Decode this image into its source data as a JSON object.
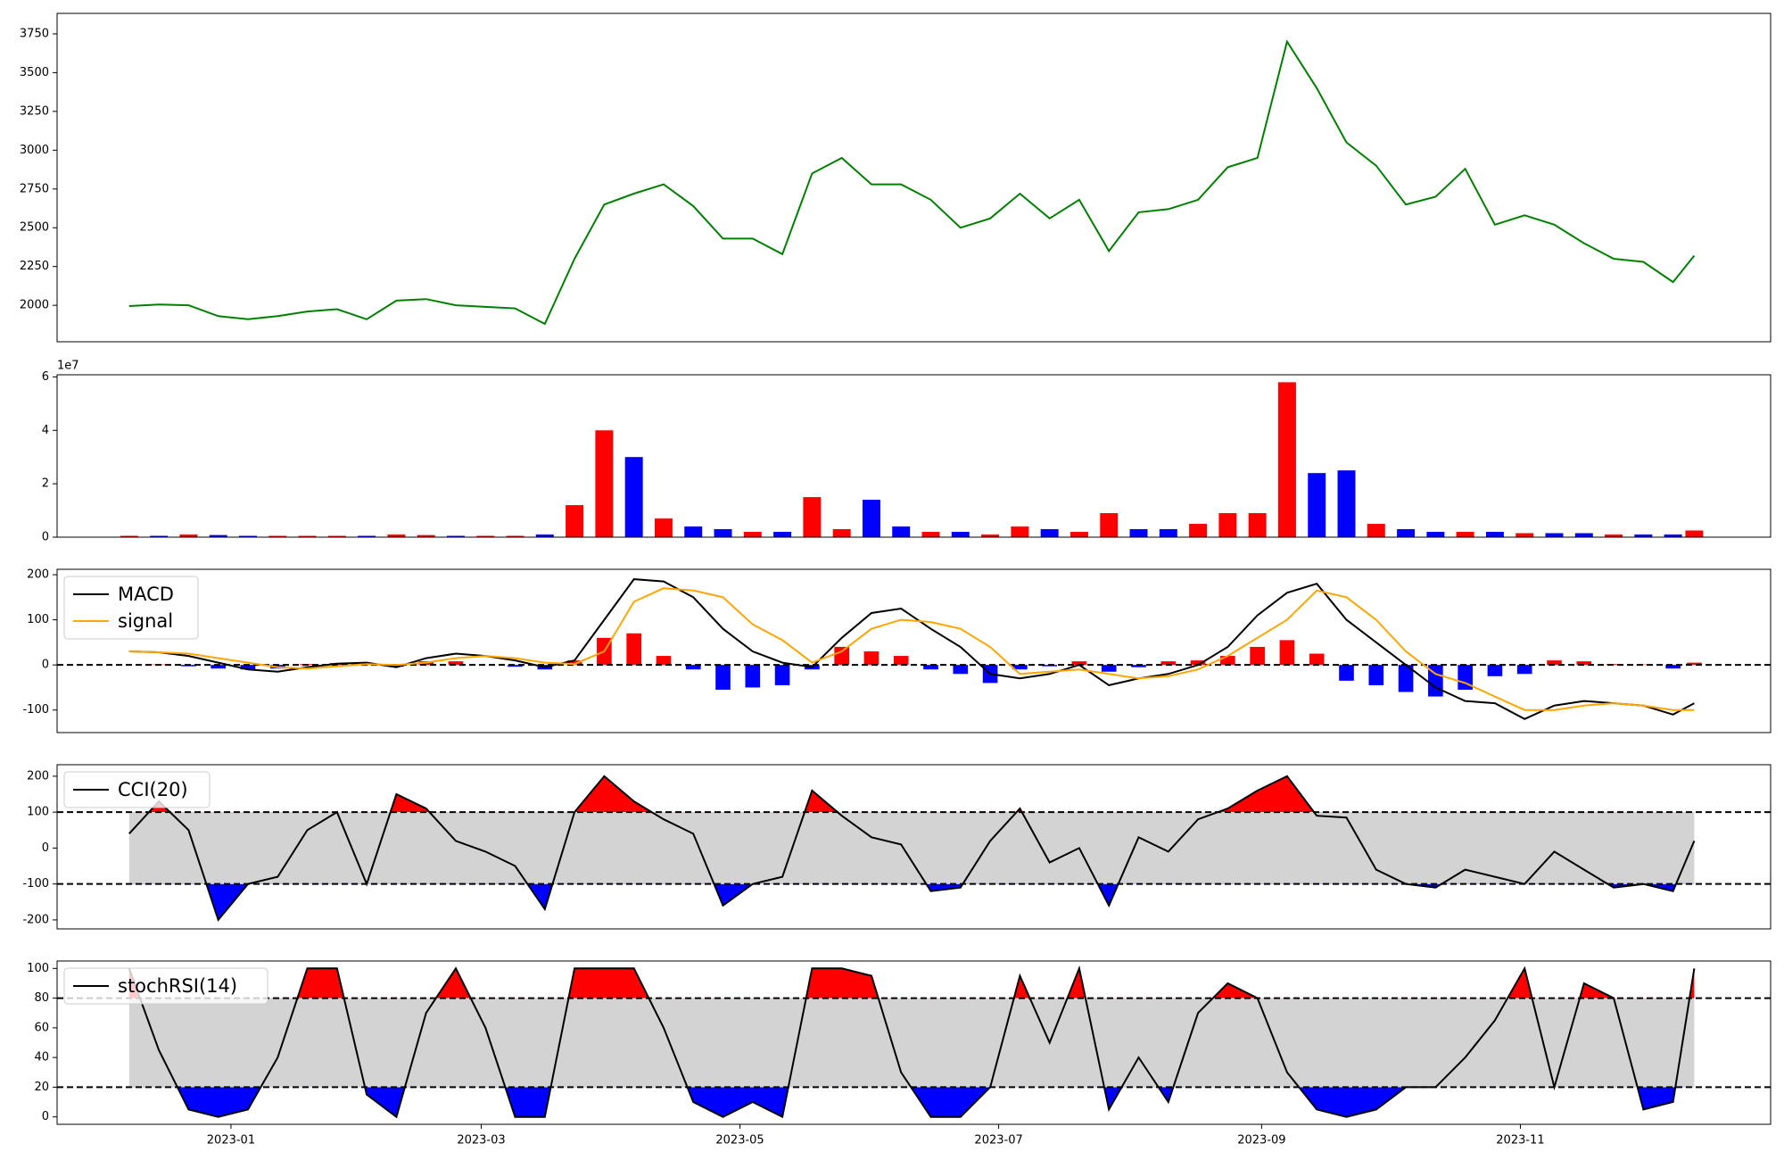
{
  "chart_data": [
    {
      "type": "line",
      "color": "green",
      "x": [
        "2022-12-08",
        "2022-12-15",
        "2022-12-22",
        "2022-12-29",
        "2023-01-05",
        "2023-01-12",
        "2023-01-19",
        "2023-01-26",
        "2023-02-02",
        "2023-02-09",
        "2023-02-16",
        "2023-02-23",
        "2023-03-02",
        "2023-03-09",
        "2023-03-16",
        "2023-03-23",
        "2023-03-30",
        "2023-04-06",
        "2023-04-13",
        "2023-04-20",
        "2023-04-27",
        "2023-05-04",
        "2023-05-11",
        "2023-05-18",
        "2023-05-25",
        "2023-06-01",
        "2023-06-08",
        "2023-06-15",
        "2023-06-22",
        "2023-06-29",
        "2023-07-06",
        "2023-07-13",
        "2023-07-20",
        "2023-07-27",
        "2023-08-03",
        "2023-08-10",
        "2023-08-17",
        "2023-08-24",
        "2023-08-31",
        "2023-09-07",
        "2023-09-14",
        "2023-09-21",
        "2023-09-28",
        "2023-10-05",
        "2023-10-12",
        "2023-10-19",
        "2023-10-26",
        "2023-11-02",
        "2023-11-09",
        "2023-11-16",
        "2023-11-23",
        "2023-11-30",
        "2023-12-07",
        "2023-12-12"
      ],
      "values": [
        1995,
        2005,
        2000,
        1930,
        1910,
        1930,
        1960,
        1975,
        1910,
        2030,
        2040,
        2000,
        1990,
        1980,
        1880,
        2300,
        2650,
        2720,
        2780,
        2640,
        2430,
        2430,
        2330,
        2850,
        2950,
        2780,
        2780,
        2680,
        2500,
        2560,
        2720,
        2560,
        2680,
        2350,
        2600,
        2620,
        2680,
        2890,
        2950,
        3700,
        3400,
        3050,
        2900,
        2650,
        2700,
        2880,
        2520,
        2580,
        2520,
        2400,
        2300,
        2280,
        2150,
        2320
      ],
      "xlim": [
        "2022-11-21",
        "2023-12-30"
      ],
      "ylim": [
        1765,
        3882
      ],
      "yticks": [
        2000,
        2250,
        2500,
        2750,
        3000,
        3250,
        3500,
        3750
      ]
    },
    {
      "type": "bar",
      "offset_text": "1e7",
      "x": [
        "2022-12-08",
        "2022-12-15",
        "2022-12-22",
        "2022-12-29",
        "2023-01-05",
        "2023-01-12",
        "2023-01-19",
        "2023-01-26",
        "2023-02-02",
        "2023-02-09",
        "2023-02-16",
        "2023-02-23",
        "2023-03-02",
        "2023-03-09",
        "2023-03-16",
        "2023-03-23",
        "2023-03-30",
        "2023-04-06",
        "2023-04-13",
        "2023-04-20",
        "2023-04-27",
        "2023-05-04",
        "2023-05-11",
        "2023-05-18",
        "2023-05-25",
        "2023-06-01",
        "2023-06-08",
        "2023-06-15",
        "2023-06-22",
        "2023-06-29",
        "2023-07-06",
        "2023-07-13",
        "2023-07-20",
        "2023-07-27",
        "2023-08-03",
        "2023-08-10",
        "2023-08-17",
        "2023-08-24",
        "2023-08-31",
        "2023-09-07",
        "2023-09-14",
        "2023-09-21",
        "2023-09-28",
        "2023-10-05",
        "2023-10-12",
        "2023-10-19",
        "2023-10-26",
        "2023-11-02",
        "2023-11-09",
        "2023-11-16",
        "2023-11-23",
        "2023-11-30",
        "2023-12-07",
        "2023-12-12"
      ],
      "values": [
        0.05,
        0.05,
        0.1,
        0.08,
        0.05,
        0.05,
        0.05,
        0.05,
        0.05,
        0.1,
        0.08,
        0.05,
        0.05,
        0.05,
        0.1,
        1.2,
        4.0,
        3.0,
        0.7,
        0.4,
        0.3,
        0.2,
        0.2,
        1.5,
        0.3,
        1.4,
        0.4,
        0.2,
        0.2,
        0.1,
        0.4,
        0.3,
        0.2,
        0.9,
        0.3,
        0.3,
        0.5,
        0.9,
        0.9,
        5.8,
        2.4,
        2.5,
        0.5,
        0.3,
        0.2,
        0.2,
        0.2,
        0.15,
        0.15,
        0.15,
        0.1,
        0.1,
        0.1,
        0.25
      ],
      "colors": [
        "red",
        "blue",
        "red",
        "blue",
        "blue",
        "red",
        "red",
        "red",
        "blue",
        "red",
        "red",
        "blue",
        "red",
        "red",
        "blue",
        "red",
        "red",
        "blue",
        "red",
        "blue",
        "blue",
        "red",
        "blue",
        "red",
        "red",
        "blue",
        "blue",
        "red",
        "blue",
        "red",
        "red",
        "blue",
        "red",
        "red",
        "blue",
        "blue",
        "red",
        "red",
        "red",
        "red",
        "blue",
        "blue",
        "red",
        "blue",
        "blue",
        "red",
        "blue",
        "red",
        "blue",
        "blue",
        "red",
        "blue",
        "blue",
        "red"
      ],
      "xlim": [
        "2022-11-21",
        "2023-12-30"
      ],
      "ylim": [
        0,
        6.08
      ],
      "yticks": [
        0,
        2,
        4,
        6
      ]
    },
    {
      "type": "macd",
      "legend": "upper left",
      "x": [
        "2022-12-08",
        "2022-12-15",
        "2022-12-22",
        "2022-12-29",
        "2023-01-05",
        "2023-01-12",
        "2023-01-19",
        "2023-01-26",
        "2023-02-02",
        "2023-02-09",
        "2023-02-16",
        "2023-02-23",
        "2023-03-02",
        "2023-03-09",
        "2023-03-16",
        "2023-03-23",
        "2023-03-30",
        "2023-04-06",
        "2023-04-13",
        "2023-04-20",
        "2023-04-27",
        "2023-05-04",
        "2023-05-11",
        "2023-05-18",
        "2023-05-25",
        "2023-06-01",
        "2023-06-08",
        "2023-06-15",
        "2023-06-22",
        "2023-06-29",
        "2023-07-06",
        "2023-07-13",
        "2023-07-20",
        "2023-07-27",
        "2023-08-03",
        "2023-08-10",
        "2023-08-17",
        "2023-08-24",
        "2023-08-31",
        "2023-09-07",
        "2023-09-14",
        "2023-09-21",
        "2023-09-28",
        "2023-10-05",
        "2023-10-12",
        "2023-10-19",
        "2023-10-26",
        "2023-11-02",
        "2023-11-09",
        "2023-11-16",
        "2023-11-23",
        "2023-11-30",
        "2023-12-07",
        "2023-12-12"
      ],
      "series": [
        {
          "name": "MACD",
          "color": "black",
          "values": [
            30,
            28,
            20,
            5,
            -10,
            -15,
            -5,
            3,
            5,
            -5,
            15,
            25,
            20,
            10,
            -5,
            10,
            100,
            190,
            185,
            150,
            80,
            30,
            5,
            -5,
            60,
            115,
            125,
            80,
            40,
            -20,
            -30,
            -20,
            0,
            -45,
            -30,
            -20,
            0,
            40,
            110,
            160,
            180,
            100,
            50,
            0,
            -50,
            -80,
            -85,
            -120,
            -90,
            -80,
            -85,
            -90,
            -110,
            -85
          ]
        },
        {
          "name": "signal",
          "color": "orange",
          "values": [
            30,
            28,
            25,
            15,
            5,
            -5,
            -8,
            -3,
            2,
            0,
            5,
            15,
            20,
            15,
            5,
            2,
            30,
            140,
            170,
            165,
            150,
            90,
            55,
            5,
            30,
            80,
            100,
            95,
            80,
            40,
            -20,
            -15,
            -10,
            -20,
            -30,
            -25,
            -10,
            20,
            60,
            100,
            165,
            150,
            100,
            30,
            -20,
            -40,
            -70,
            -100,
            -100,
            -90,
            -85,
            -90,
            -100,
            -100
          ]
        }
      ],
      "histogram": [
        0,
        1,
        -3,
        -8,
        -10,
        -8,
        2,
        4,
        2,
        -4,
        8,
        8,
        0,
        -4,
        -10,
        10,
        60,
        70,
        20,
        -10,
        -55,
        -50,
        -45,
        -10,
        40,
        30,
        20,
        -10,
        -20,
        -40,
        -10,
        -3,
        8,
        -15,
        -5,
        8,
        10,
        20,
        40,
        55,
        25,
        -35,
        -45,
        -60,
        -70,
        -55,
        -25,
        -20,
        10,
        8,
        2,
        1,
        -8,
        5
      ],
      "hist_colors": [
        "red",
        "blue"
      ],
      "levels": [
        0
      ],
      "xlim": [
        "2022-11-21",
        "2023-12-30"
      ],
      "ylim": [
        -150,
        212
      ],
      "yticks": [
        -100,
        0,
        100,
        200
      ]
    },
    {
      "type": "band",
      "legend": "upper left",
      "x": [
        "2022-12-08",
        "2022-12-15",
        "2022-12-22",
        "2022-12-29",
        "2023-01-05",
        "2023-01-12",
        "2023-01-19",
        "2023-01-26",
        "2023-02-02",
        "2023-02-09",
        "2023-02-16",
        "2023-02-23",
        "2023-03-02",
        "2023-03-09",
        "2023-03-16",
        "2023-03-23",
        "2023-03-30",
        "2023-04-06",
        "2023-04-13",
        "2023-04-20",
        "2023-04-27",
        "2023-05-04",
        "2023-05-11",
        "2023-05-18",
        "2023-05-25",
        "2023-06-01",
        "2023-06-08",
        "2023-06-15",
        "2023-06-22",
        "2023-06-29",
        "2023-07-06",
        "2023-07-13",
        "2023-07-20",
        "2023-07-27",
        "2023-08-03",
        "2023-08-10",
        "2023-08-17",
        "2023-08-24",
        "2023-08-31",
        "2023-09-07",
        "2023-09-14",
        "2023-09-21",
        "2023-09-28",
        "2023-10-05",
        "2023-10-12",
        "2023-10-19",
        "2023-10-26",
        "2023-11-02",
        "2023-11-09",
        "2023-11-16",
        "2023-11-23",
        "2023-11-30",
        "2023-12-07",
        "2023-12-12"
      ],
      "series": [
        {
          "name": "CCI(20)",
          "color": "black",
          "values": [
            40,
            130,
            50,
            -200,
            -100,
            -80,
            50,
            100,
            -100,
            150,
            110,
            20,
            -10,
            -50,
            -170,
            100,
            200,
            130,
            80,
            40,
            -160,
            -100,
            -80,
            160,
            90,
            30,
            10,
            -120,
            -110,
            20,
            110,
            -40,
            0,
            -160,
            30,
            -10,
            80,
            110,
            160,
            200,
            90,
            85,
            -60,
            -100,
            -110,
            -60,
            -80,
            -100,
            -10,
            -60,
            -110,
            -100,
            -120,
            20
          ]
        }
      ],
      "levels": [
        -100,
        100
      ],
      "band_color": "lightgray",
      "fill_colors": [
        "blue",
        "red"
      ],
      "xlim": [
        "2022-11-21",
        "2023-12-30"
      ],
      "ylim": [
        -225,
        232
      ],
      "yticks": [
        -200,
        -100,
        0,
        100,
        200
      ]
    },
    {
      "type": "band",
      "legend": "upper left",
      "x": [
        "2022-12-08",
        "2022-12-15",
        "2022-12-22",
        "2022-12-29",
        "2023-01-05",
        "2023-01-12",
        "2023-01-19",
        "2023-01-26",
        "2023-02-02",
        "2023-02-09",
        "2023-02-16",
        "2023-02-23",
        "2023-03-02",
        "2023-03-09",
        "2023-03-16",
        "2023-03-23",
        "2023-03-30",
        "2023-04-06",
        "2023-04-13",
        "2023-04-20",
        "2023-04-27",
        "2023-05-04",
        "2023-05-11",
        "2023-05-18",
        "2023-05-25",
        "2023-06-01",
        "2023-06-08",
        "2023-06-15",
        "2023-06-22",
        "2023-06-29",
        "2023-07-06",
        "2023-07-13",
        "2023-07-20",
        "2023-07-27",
        "2023-08-03",
        "2023-08-10",
        "2023-08-17",
        "2023-08-24",
        "2023-08-31",
        "2023-09-07",
        "2023-09-14",
        "2023-09-21",
        "2023-09-28",
        "2023-10-05",
        "2023-10-12",
        "2023-10-19",
        "2023-10-26",
        "2023-11-02",
        "2023-11-09",
        "2023-11-16",
        "2023-11-23",
        "2023-11-30",
        "2023-12-07",
        "2023-12-12"
      ],
      "series": [
        {
          "name": "stochRSI(14)",
          "color": "black",
          "values": [
            100,
            45,
            5,
            0,
            5,
            40,
            100,
            100,
            15,
            0,
            70,
            100,
            60,
            0,
            0,
            100,
            100,
            100,
            60,
            10,
            0,
            10,
            0,
            100,
            100,
            95,
            30,
            0,
            0,
            20,
            95,
            50,
            100,
            5,
            40,
            10,
            70,
            90,
            80,
            30,
            5,
            0,
            5,
            20,
            20,
            40,
            65,
            100,
            20,
            90,
            80,
            5,
            10,
            100
          ]
        }
      ],
      "levels": [
        20,
        80
      ],
      "band_color": "lightgray",
      "fill_colors": [
        "blue",
        "red"
      ],
      "xlim": [
        "2022-11-21",
        "2023-12-30"
      ],
      "ylim": [
        -5,
        105
      ],
      "yticks": [
        0,
        20,
        40,
        60,
        80,
        100
      ],
      "xticks": [
        {
          "value": "2023-01-01",
          "label": "2023-01"
        },
        {
          "value": "2023-03-01",
          "label": "2023-03"
        },
        {
          "value": "2023-05-01",
          "label": "2023-05"
        },
        {
          "value": "2023-07-01",
          "label": "2023-07"
        },
        {
          "value": "2023-09-01",
          "label": "2023-09"
        },
        {
          "value": "2023-11-01",
          "label": "2023-11"
        }
      ]
    }
  ]
}
